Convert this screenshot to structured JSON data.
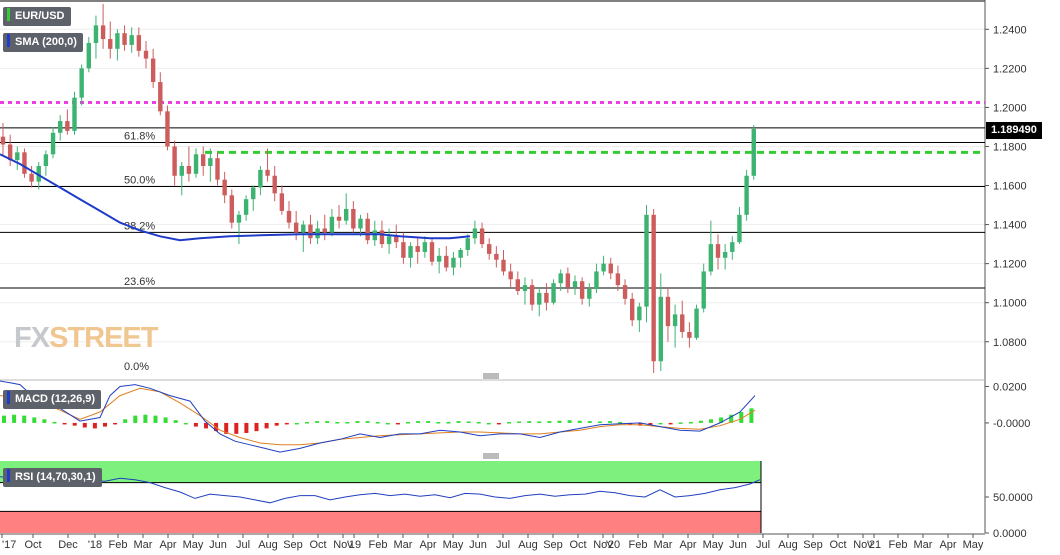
{
  "legend": {
    "symbol": "EUR/USD",
    "sma": "SMA (200,0)",
    "macd": "MACD (12,26,9)",
    "rsi": "RSI (14,70,30,1)"
  },
  "logo": {
    "part1": "FX",
    "part2": "STREET"
  },
  "last_price": "1.189490",
  "colors": {
    "up": "#3cb371",
    "down": "#cd5c5c",
    "sma": "#1f3cc9",
    "magenta": "#e83ee3",
    "green_dash": "#33cc33",
    "rsi_over": "#7ef07e",
    "rsi_under": "#ff8080"
  },
  "chart_data": {
    "type": "candlestick",
    "price_axis": {
      "min": 1.064,
      "max": 1.255,
      "ticks": [
        "1.2400",
        "1.2200",
        "1.2000",
        "1.1800",
        "1.1600",
        "1.1400",
        "1.1200",
        "1.1000",
        "1.0800"
      ]
    },
    "time_axis": [
      "'17",
      "Oct",
      "Dec",
      "'18",
      "Feb",
      "Mar",
      "Apr",
      "May",
      "Jun",
      "Jul",
      "Aug",
      "Sep",
      "Oct",
      "Nov",
      "'19",
      "Feb",
      "Mar",
      "Apr",
      "May",
      "Jun",
      "Jul",
      "Aug",
      "Sep",
      "Oct",
      "Nov",
      "'20",
      "Feb",
      "Mar",
      "Apr",
      "May",
      "Jun",
      "Jul",
      "Aug",
      "Sep",
      "Oct",
      "Nov",
      "'21",
      "Feb",
      "Mar",
      "Apr",
      "May"
    ],
    "horizontal_lines": [
      {
        "name": "magenta-resistance",
        "value": 1.2025,
        "style": "dotted"
      },
      {
        "name": "green-resistance",
        "value": 1.177,
        "style": "dashed"
      }
    ],
    "fibonacci": [
      {
        "label": "61.8%",
        "value": 1.182
      },
      {
        "label": "50.0%",
        "value": 1.1595
      },
      {
        "label": "38.2%",
        "value": 1.136
      },
      {
        "label": "23.6%",
        "value": 1.1075
      },
      {
        "label": "0.0%",
        "value": 1.064
      }
    ],
    "top_line": 1.255,
    "sma200": [
      [
        0,
        1.176
      ],
      [
        20,
        1.171
      ],
      [
        40,
        1.165
      ],
      [
        60,
        1.159
      ],
      [
        80,
        1.153
      ],
      [
        100,
        1.147
      ],
      [
        120,
        1.141
      ],
      [
        140,
        1.137
      ],
      [
        160,
        1.134
      ],
      [
        180,
        1.132
      ],
      [
        200,
        1.133
      ],
      [
        230,
        1.134
      ],
      [
        260,
        1.1345
      ],
      [
        300,
        1.135
      ],
      [
        340,
        1.135
      ],
      [
        380,
        1.135
      ],
      [
        400,
        1.134
      ],
      [
        430,
        1.133
      ],
      [
        450,
        1.133
      ],
      [
        470,
        1.134
      ]
    ],
    "candles": [
      [
        1.185,
        1.192,
        1.175,
        1.181
      ],
      [
        1.181,
        1.186,
        1.17,
        1.173
      ],
      [
        1.173,
        1.18,
        1.168,
        1.177
      ],
      [
        1.177,
        1.179,
        1.164,
        1.166
      ],
      [
        1.166,
        1.17,
        1.159,
        1.162
      ],
      [
        1.162,
        1.172,
        1.158,
        1.17
      ],
      [
        1.17,
        1.178,
        1.165,
        1.176
      ],
      [
        1.176,
        1.19,
        1.174,
        1.187
      ],
      [
        1.187,
        1.196,
        1.183,
        1.193
      ],
      [
        1.193,
        1.199,
        1.186,
        1.188
      ],
      [
        1.188,
        1.208,
        1.186,
        1.205
      ],
      [
        1.205,
        1.222,
        1.201,
        1.22
      ],
      [
        1.22,
        1.236,
        1.218,
        1.233
      ],
      [
        1.233,
        1.247,
        1.225,
        1.242
      ],
      [
        1.242,
        1.253,
        1.23,
        1.235
      ],
      [
        1.235,
        1.244,
        1.225,
        1.23
      ],
      [
        1.23,
        1.24,
        1.224,
        1.238
      ],
      [
        1.238,
        1.242,
        1.229,
        1.232
      ],
      [
        1.232,
        1.241,
        1.228,
        1.237
      ],
      [
        1.237,
        1.241,
        1.226,
        1.229
      ],
      [
        1.229,
        1.234,
        1.22,
        1.225
      ],
      [
        1.225,
        1.23,
        1.21,
        1.213
      ],
      [
        1.213,
        1.218,
        1.196,
        1.198
      ],
      [
        1.198,
        1.201,
        1.178,
        1.18
      ],
      [
        1.18,
        1.183,
        1.16,
        1.165
      ],
      [
        1.165,
        1.172,
        1.155,
        1.17
      ],
      [
        1.17,
        1.18,
        1.162,
        1.166
      ],
      [
        1.166,
        1.179,
        1.164,
        1.176
      ],
      [
        1.176,
        1.18,
        1.165,
        1.17
      ],
      [
        1.17,
        1.179,
        1.162,
        1.174
      ],
      [
        1.174,
        1.177,
        1.16,
        1.163
      ],
      [
        1.163,
        1.167,
        1.151,
        1.155
      ],
      [
        1.155,
        1.158,
        1.138,
        1.141
      ],
      [
        1.141,
        1.147,
        1.13,
        1.145
      ],
      [
        1.145,
        1.155,
        1.142,
        1.153
      ],
      [
        1.153,
        1.16,
        1.147,
        1.159
      ],
      [
        1.159,
        1.17,
        1.155,
        1.168
      ],
      [
        1.168,
        1.179,
        1.162,
        1.165
      ],
      [
        1.165,
        1.17,
        1.152,
        1.156
      ],
      [
        1.156,
        1.16,
        1.145,
        1.147
      ],
      [
        1.147,
        1.152,
        1.138,
        1.141
      ],
      [
        1.141,
        1.147,
        1.132,
        1.136
      ],
      [
        1.136,
        1.142,
        1.126,
        1.14
      ],
      [
        1.14,
        1.145,
        1.13,
        1.133
      ],
      [
        1.133,
        1.142,
        1.13,
        1.138
      ],
      [
        1.138,
        1.145,
        1.132,
        1.136
      ],
      [
        1.136,
        1.148,
        1.134,
        1.144
      ],
      [
        1.144,
        1.15,
        1.138,
        1.142
      ],
      [
        1.142,
        1.156,
        1.14,
        1.148
      ],
      [
        1.148,
        1.152,
        1.136,
        1.138
      ],
      [
        1.138,
        1.145,
        1.134,
        1.143
      ],
      [
        1.143,
        1.146,
        1.13,
        1.132
      ],
      [
        1.132,
        1.142,
        1.129,
        1.137
      ],
      [
        1.137,
        1.142,
        1.128,
        1.13
      ],
      [
        1.13,
        1.138,
        1.125,
        1.134
      ],
      [
        1.134,
        1.14,
        1.128,
        1.131
      ],
      [
        1.131,
        1.136,
        1.12,
        1.123
      ],
      [
        1.123,
        1.131,
        1.118,
        1.129
      ],
      [
        1.129,
        1.133,
        1.12,
        1.126
      ],
      [
        1.126,
        1.134,
        1.123,
        1.131
      ],
      [
        1.131,
        1.133,
        1.119,
        1.121
      ],
      [
        1.121,
        1.128,
        1.115,
        1.124
      ],
      [
        1.124,
        1.129,
        1.116,
        1.118
      ],
      [
        1.118,
        1.126,
        1.114,
        1.123
      ],
      [
        1.123,
        1.128,
        1.118,
        1.127
      ],
      [
        1.127,
        1.135,
        1.124,
        1.133
      ],
      [
        1.133,
        1.142,
        1.13,
        1.138
      ],
      [
        1.138,
        1.141,
        1.128,
        1.13
      ],
      [
        1.13,
        1.133,
        1.122,
        1.125
      ],
      [
        1.125,
        1.129,
        1.118,
        1.122
      ],
      [
        1.122,
        1.127,
        1.114,
        1.116
      ],
      [
        1.116,
        1.12,
        1.108,
        1.112
      ],
      [
        1.112,
        1.116,
        1.104,
        1.106
      ],
      [
        1.106,
        1.113,
        1.099,
        1.109
      ],
      [
        1.109,
        1.112,
        1.096,
        1.099
      ],
      [
        1.099,
        1.108,
        1.093,
        1.105
      ],
      [
        1.105,
        1.11,
        1.096,
        1.1
      ],
      [
        1.1,
        1.112,
        1.099,
        1.11
      ],
      [
        1.11,
        1.117,
        1.106,
        1.115
      ],
      [
        1.115,
        1.118,
        1.105,
        1.108
      ],
      [
        1.108,
        1.114,
        1.104,
        1.111
      ],
      [
        1.111,
        1.113,
        1.099,
        1.102
      ],
      [
        1.102,
        1.11,
        1.098,
        1.107
      ],
      [
        1.107,
        1.12,
        1.105,
        1.116
      ],
      [
        1.116,
        1.124,
        1.114,
        1.12
      ],
      [
        1.12,
        1.123,
        1.112,
        1.115
      ],
      [
        1.115,
        1.119,
        1.106,
        1.109
      ],
      [
        1.109,
        1.112,
        1.099,
        1.102
      ],
      [
        1.102,
        1.105,
        1.088,
        1.091
      ],
      [
        1.091,
        1.1,
        1.085,
        1.098
      ],
      [
        1.098,
        1.15,
        1.09,
        1.145
      ],
      [
        1.145,
        1.148,
        1.064,
        1.07
      ],
      [
        1.07,
        1.115,
        1.065,
        1.103
      ],
      [
        1.103,
        1.108,
        1.08,
        1.088
      ],
      [
        1.088,
        1.099,
        1.077,
        1.094
      ],
      [
        1.094,
        1.101,
        1.082,
        1.085
      ],
      [
        1.085,
        1.09,
        1.077,
        1.082
      ],
      [
        1.082,
        1.099,
        1.081,
        1.097
      ],
      [
        1.097,
        1.12,
        1.095,
        1.116
      ],
      [
        1.116,
        1.142,
        1.114,
        1.13
      ],
      [
        1.13,
        1.135,
        1.117,
        1.123
      ],
      [
        1.123,
        1.13,
        1.117,
        1.126
      ],
      [
        1.126,
        1.134,
        1.122,
        1.131
      ],
      [
        1.131,
        1.149,
        1.13,
        1.145
      ],
      [
        1.145,
        1.168,
        1.142,
        1.165
      ],
      [
        1.165,
        1.191,
        1.163,
        1.189
      ]
    ],
    "macd": {
      "ticks": [
        "0.0200",
        "-0.0000"
      ],
      "range": [
        -0.0165,
        0.023
      ],
      "macd_line": [
        [
          0,
          0.023
        ],
        [
          10,
          0.022
        ],
        [
          20,
          0.021
        ],
        [
          30,
          0.016
        ],
        [
          40,
          0.012
        ],
        [
          60,
          0.008
        ],
        [
          80,
          0.001
        ],
        [
          100,
          0.003
        ],
        [
          110,
          0.015
        ],
        [
          120,
          0.02
        ],
        [
          135,
          0.021
        ],
        [
          150,
          0.019
        ],
        [
          170,
          0.015
        ],
        [
          190,
          0.012
        ],
        [
          205,
          0.001
        ],
        [
          220,
          -0.006
        ],
        [
          235,
          -0.01
        ],
        [
          250,
          -0.012
        ],
        [
          265,
          -0.014
        ],
        [
          280,
          -0.016
        ],
        [
          300,
          -0.014
        ],
        [
          320,
          -0.011
        ],
        [
          340,
          -0.009
        ],
        [
          360,
          -0.006
        ],
        [
          380,
          -0.008
        ],
        [
          400,
          -0.006
        ],
        [
          420,
          -0.006
        ],
        [
          440,
          -0.004
        ],
        [
          460,
          -0.005
        ],
        [
          480,
          -0.007
        ],
        [
          500,
          -0.006
        ],
        [
          520,
          -0.006
        ],
        [
          540,
          -0.008
        ],
        [
          560,
          -0.005
        ],
        [
          580,
          -0.003
        ],
        [
          600,
          -0.001
        ],
        [
          620,
          -0.0005
        ],
        [
          640,
          0.0
        ],
        [
          660,
          -0.002
        ],
        [
          680,
          -0.004
        ],
        [
          700,
          -0.0045
        ],
        [
          720,
          0.0
        ],
        [
          740,
          0.006
        ],
        [
          755,
          0.015
        ]
      ],
      "signal_line": [
        [
          0,
          0.015
        ],
        [
          20,
          0.014
        ],
        [
          40,
          0.012
        ],
        [
          60,
          0.007
        ],
        [
          80,
          0.002
        ],
        [
          100,
          0.006
        ],
        [
          120,
          0.015
        ],
        [
          140,
          0.019
        ],
        [
          160,
          0.017
        ],
        [
          180,
          0.011
        ],
        [
          200,
          0.004
        ],
        [
          220,
          -0.004
        ],
        [
          240,
          -0.008
        ],
        [
          260,
          -0.011
        ],
        [
          280,
          -0.012
        ],
        [
          300,
          -0.012
        ],
        [
          320,
          -0.011
        ],
        [
          340,
          -0.009
        ],
        [
          360,
          -0.008
        ],
        [
          380,
          -0.007
        ],
        [
          400,
          -0.0065
        ],
        [
          420,
          -0.006
        ],
        [
          440,
          -0.0055
        ],
        [
          460,
          -0.005
        ],
        [
          480,
          -0.005
        ],
        [
          500,
          -0.0055
        ],
        [
          520,
          -0.006
        ],
        [
          540,
          -0.006
        ],
        [
          560,
          -0.005
        ],
        [
          580,
          -0.004
        ],
        [
          600,
          -0.002
        ],
        [
          620,
          -0.001
        ],
        [
          640,
          -0.001
        ],
        [
          660,
          -0.002
        ],
        [
          680,
          -0.003
        ],
        [
          700,
          -0.0035
        ],
        [
          720,
          -0.0015
        ],
        [
          740,
          0.002
        ],
        [
          755,
          0.007
        ]
      ],
      "histogram": [
        0.004,
        0.0045,
        0.004,
        0.003,
        0.002,
        0.0005,
        -0.0005,
        -0.0015,
        -0.0025,
        -0.003,
        -0.002,
        -0.0005,
        0.002,
        0.004,
        0.0045,
        0.004,
        0.003,
        0.0015,
        0.0,
        -0.002,
        -0.003,
        -0.0045,
        -0.006,
        -0.006,
        -0.0055,
        -0.0045,
        -0.003,
        -0.0015,
        -0.0005,
        0.0,
        0.0005,
        0.001,
        0.001,
        0.0005,
        0.0005,
        0.001,
        0.001,
        0.0005,
        0.0,
        -0.0005,
        0.0005,
        0.001,
        0.001,
        0.0005,
        0.0005,
        0.001,
        0.0008,
        0.0005,
        0.0,
        -0.0005,
        0.0005,
        0.0008,
        0.001,
        0.0008,
        0.001,
        0.0012,
        0.0015,
        0.0012,
        0.001,
        0.0008,
        0.001,
        0.0005,
        -0.0005,
        -0.0015,
        -0.001,
        0.0,
        -0.0005,
        0.0003,
        0.0005,
        0.0012,
        0.002,
        0.003,
        0.0045,
        0.006,
        0.008
      ]
    },
    "rsi": {
      "ticks": [
        "50.0000",
        "0.0000"
      ],
      "range": [
        0,
        100
      ],
      "overbought": 70,
      "oversold": 30,
      "values": [
        [
          0,
          78
        ],
        [
          15,
          76
        ],
        [
          30,
          73
        ],
        [
          45,
          72
        ],
        [
          60,
          72
        ],
        [
          75,
          70
        ],
        [
          90,
          73
        ],
        [
          105,
          72
        ],
        [
          120,
          76
        ],
        [
          135,
          74
        ],
        [
          150,
          70
        ],
        [
          165,
          63
        ],
        [
          180,
          57
        ],
        [
          195,
          48
        ],
        [
          210,
          54
        ],
        [
          225,
          52
        ],
        [
          240,
          50
        ],
        [
          255,
          46
        ],
        [
          270,
          42
        ],
        [
          285,
          48
        ],
        [
          300,
          52
        ],
        [
          315,
          52
        ],
        [
          330,
          46
        ],
        [
          345,
          50
        ],
        [
          360,
          53
        ],
        [
          375,
          55
        ],
        [
          390,
          52
        ],
        [
          405,
          54
        ],
        [
          420,
          51
        ],
        [
          435,
          53
        ],
        [
          450,
          49
        ],
        [
          465,
          55
        ],
        [
          480,
          54
        ],
        [
          495,
          50
        ],
        [
          510,
          48
        ],
        [
          525,
          52
        ],
        [
          540,
          54
        ],
        [
          555,
          51
        ],
        [
          570,
          53
        ],
        [
          585,
          54
        ],
        [
          600,
          58
        ],
        [
          615,
          56
        ],
        [
          630,
          52
        ],
        [
          645,
          50
        ],
        [
          660,
          60
        ],
        [
          675,
          50
        ],
        [
          690,
          52
        ],
        [
          705,
          55
        ],
        [
          720,
          60
        ],
        [
          735,
          63
        ],
        [
          750,
          68
        ],
        [
          760,
          74
        ]
      ]
    }
  }
}
